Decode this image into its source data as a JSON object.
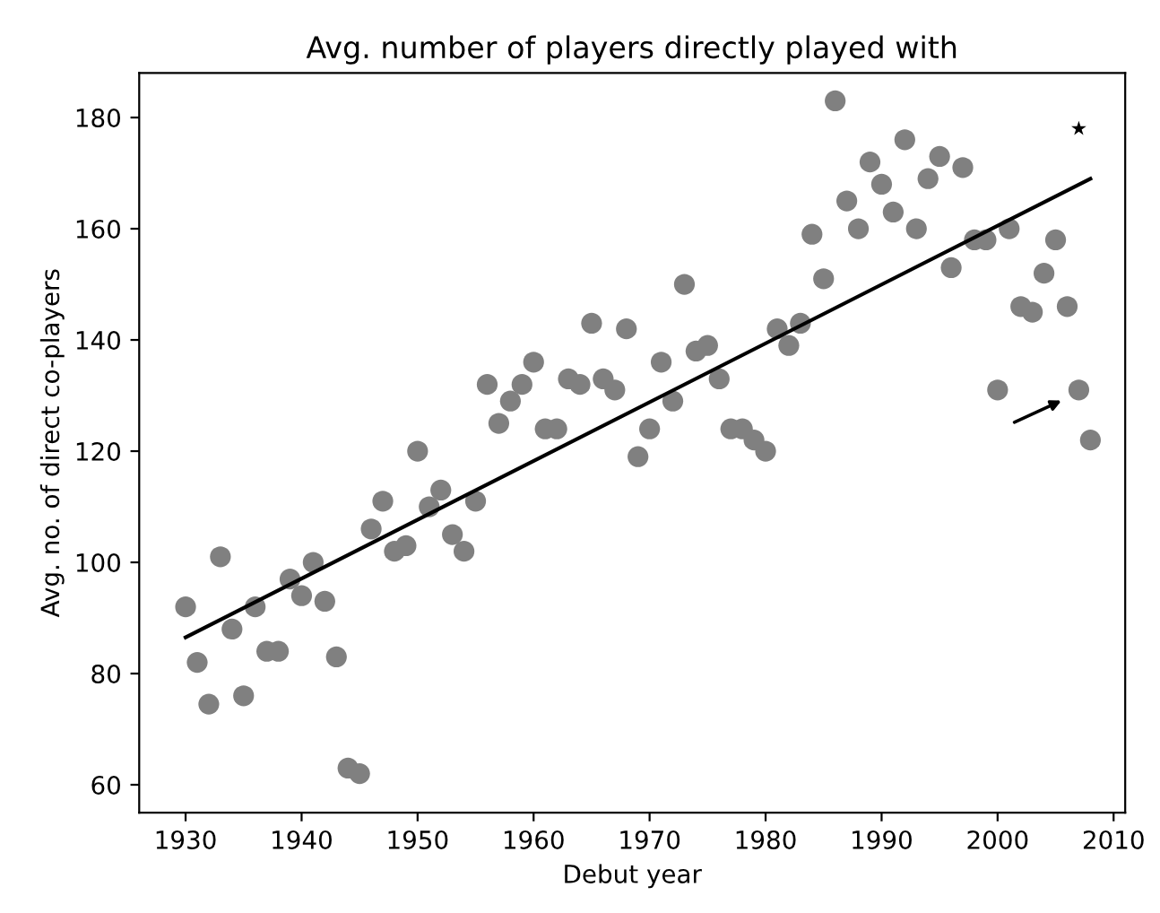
{
  "chart_data": {
    "type": "scatter",
    "title": "Avg. number of players directly played with",
    "xlabel": "Debut year",
    "ylabel": "Avg. no. of direct co-players",
    "xlim": [
      1926,
      2011
    ],
    "ylim": [
      55,
      188
    ],
    "xticks": [
      1930,
      1940,
      1950,
      1960,
      1970,
      1980,
      1990,
      2000,
      2010
    ],
    "yticks": [
      60,
      80,
      100,
      120,
      140,
      160,
      180
    ],
    "grid": false,
    "legend": false,
    "series": [
      {
        "marker": "circle",
        "color": "#808080",
        "x": [
          1930,
          1931,
          1932,
          1933,
          1934,
          1935,
          1936,
          1937,
          1938,
          1939,
          1940,
          1941,
          1942,
          1943,
          1944,
          1945,
          1946,
          1947,
          1948,
          1949,
          1950,
          1951,
          1952,
          1953,
          1954,
          1955,
          1956,
          1957,
          1958,
          1959,
          1960,
          1961,
          1962,
          1963,
          1964,
          1965,
          1966,
          1967,
          1968,
          1969,
          1970,
          1971,
          1972,
          1973,
          1974,
          1975,
          1976,
          1977,
          1978,
          1979,
          1980,
          1981,
          1982,
          1983,
          1984,
          1985,
          1986,
          1987,
          1988,
          1989,
          1990,
          1991,
          1992,
          1993,
          1994,
          1995,
          1996,
          1997,
          1998,
          1999,
          2000,
          2001,
          2002,
          2003,
          2004,
          2005,
          2006,
          2007,
          2008
        ],
        "values": [
          92,
          82,
          74.5,
          101,
          88,
          76,
          92,
          84,
          84,
          97,
          94,
          100,
          93,
          83,
          63,
          62,
          106,
          111,
          102,
          103,
          120,
          110,
          113,
          105,
          102,
          111,
          132,
          125,
          129,
          132,
          136,
          124,
          124,
          133,
          132,
          143,
          133,
          131,
          142,
          119,
          124,
          136,
          129,
          150,
          138,
          139,
          133,
          124,
          124,
          122,
          120,
          142,
          139,
          143,
          159,
          151,
          183,
          165,
          160,
          172,
          168,
          163,
          176,
          160,
          169,
          173,
          153,
          171,
          158,
          158,
          131,
          160,
          146,
          145,
          152,
          158,
          146,
          131,
          122
        ]
      },
      {
        "type": "line",
        "marker": "none",
        "line_style": "solid",
        "color": "#000000",
        "x": [
          1930,
          2008
        ],
        "values": [
          86.5,
          169
        ]
      },
      {
        "type": "scatter",
        "marker": "star",
        "color": "#000000",
        "x": [
          2007
        ],
        "values": [
          178
        ]
      }
    ]
  }
}
